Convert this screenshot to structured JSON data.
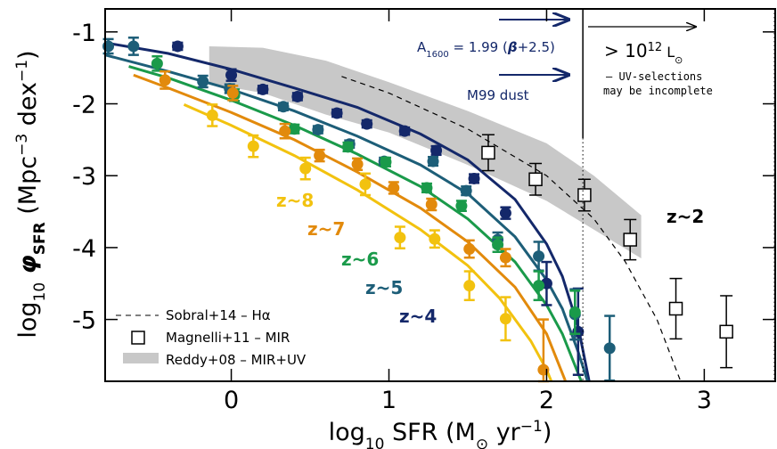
{
  "chart_data": {
    "type": "scatter",
    "xlabel": [
      "log",
      "10",
      " SFR (M",
      "⊙",
      " yr",
      "−1",
      ")"
    ],
    "ylabel": [
      "log",
      "10",
      " φ",
      "SFR",
      " (Mpc",
      "−3",
      " dex",
      "−1",
      ")"
    ],
    "xlim": [
      -0.8,
      3.45
    ],
    "ylim": [
      -5.86,
      -0.68
    ],
    "xticks": [
      0,
      1,
      2,
      3
    ],
    "yticks": [
      -5,
      -4,
      -3,
      -2,
      -1
    ],
    "series": [
      {
        "name": "z~4",
        "color": "#14286a",
        "x": [
          -0.34,
          0.0,
          0.2,
          0.42,
          0.67,
          0.86,
          1.1,
          1.3,
          1.54,
          1.74,
          2.0,
          2.2
        ],
        "values": [
          -1.2,
          -1.6,
          -1.8,
          -1.9,
          -2.13,
          -2.28,
          -2.38,
          -2.65,
          -3.04,
          -3.52,
          -4.5,
          -5.17
        ],
        "errors": [
          0.05,
          0.08,
          0.05,
          0.05,
          0.05,
          0.05,
          0.05,
          0.06,
          0.06,
          0.08,
          0.3,
          0.6
        ],
        "fit_x": [
          -0.8,
          -0.4,
          0,
          0.4,
          0.8,
          1.2,
          1.5,
          1.8,
          2.0,
          2.1,
          2.2,
          2.27
        ],
        "fit_values": [
          -1.15,
          -1.3,
          -1.52,
          -1.78,
          -2.05,
          -2.42,
          -2.78,
          -3.33,
          -3.95,
          -4.4,
          -5.1,
          -5.86
        ]
      },
      {
        "name": "z~5",
        "color": "#1d5e78",
        "x": [
          -0.78,
          -0.62,
          -0.18,
          -0.01,
          0.33,
          0.55,
          0.75,
          0.97,
          1.28,
          1.49,
          1.69,
          1.95,
          2.18,
          2.4
        ],
        "values": [
          -1.2,
          -1.2,
          -1.69,
          -1.79,
          -2.04,
          -2.36,
          -2.56,
          -2.8,
          -2.8,
          -3.21,
          -3.89,
          -4.12,
          -4.93,
          -5.4
        ],
        "errors": [
          0.1,
          0.12,
          0.08,
          0.06,
          0.05,
          0.05,
          0.05,
          0.05,
          0.06,
          0.06,
          0.1,
          0.2,
          0.35,
          0.45
        ],
        "fit_x": [
          -0.8,
          -0.4,
          0,
          0.4,
          0.8,
          1.2,
          1.5,
          1.8,
          2.0,
          2.1,
          2.2,
          2.26
        ],
        "fit_values": [
          -1.32,
          -1.55,
          -1.8,
          -2.1,
          -2.45,
          -2.85,
          -3.25,
          -3.85,
          -4.45,
          -4.85,
          -5.45,
          -5.86
        ]
      },
      {
        "name": "z~6",
        "color": "#1a9a4a",
        "x": [
          -0.47,
          0.02,
          0.4,
          0.74,
          0.98,
          1.24,
          1.46,
          1.69,
          1.95,
          2.18
        ],
        "values": [
          -1.44,
          -1.88,
          -2.35,
          -2.6,
          -2.81,
          -3.17,
          -3.42,
          -3.96,
          -4.53,
          -4.9
        ],
        "errors": [
          0.1,
          0.08,
          0.06,
          0.06,
          0.06,
          0.06,
          0.07,
          0.1,
          0.2,
          0.3
        ],
        "fit_x": [
          -0.65,
          -0.4,
          0,
          0.4,
          0.8,
          1.2,
          1.5,
          1.8,
          2.0,
          2.1,
          2.2,
          2.22
        ],
        "fit_values": [
          -1.48,
          -1.64,
          -1.95,
          -2.3,
          -2.7,
          -3.15,
          -3.6,
          -4.2,
          -4.8,
          -5.2,
          -5.75,
          -5.86
        ]
      },
      {
        "name": "z~7",
        "color": "#e28a0c",
        "x": [
          -0.42,
          0.01,
          0.34,
          0.56,
          0.8,
          1.03,
          1.27,
          1.51,
          1.74,
          1.98
        ],
        "values": [
          -1.67,
          -1.85,
          -2.38,
          -2.72,
          -2.84,
          -3.17,
          -3.4,
          -4.02,
          -4.14,
          -5.7
        ],
        "errors": [
          0.12,
          0.1,
          0.1,
          0.08,
          0.08,
          0.08,
          0.08,
          0.12,
          0.12,
          0.7
        ],
        "fit_x": [
          -0.62,
          -0.4,
          0,
          0.4,
          0.8,
          1.2,
          1.5,
          1.8,
          2.0,
          2.12
        ],
        "fit_values": [
          -1.6,
          -1.78,
          -2.12,
          -2.5,
          -2.95,
          -3.45,
          -3.92,
          -4.55,
          -5.2,
          -5.86
        ]
      },
      {
        "name": "z~8",
        "color": "#f2c20f",
        "x": [
          -0.12,
          0.14,
          0.47,
          0.85,
          1.07,
          1.29,
          1.51,
          1.74
        ],
        "values": [
          -2.16,
          -2.59,
          -2.9,
          -3.12,
          -3.86,
          -3.88,
          -4.53,
          -4.99
        ],
        "errors": [
          0.15,
          0.15,
          0.15,
          0.15,
          0.15,
          0.12,
          0.2,
          0.3
        ],
        "fit_x": [
          -0.3,
          0,
          0.4,
          0.8,
          1.2,
          1.5,
          1.7,
          1.9,
          2.0,
          2.03
        ],
        "fit_values": [
          -2.01,
          -2.3,
          -2.72,
          -3.2,
          -3.75,
          -4.25,
          -4.7,
          -5.3,
          -5.7,
          -5.86
        ]
      }
    ],
    "magnelli": {
      "name": "Magnelli+11 – MIR",
      "color": "#000000",
      "x": [
        1.63,
        1.93,
        2.24,
        2.53,
        2.82,
        3.14
      ],
      "values": [
        -2.68,
        -3.05,
        -3.27,
        -3.89,
        -4.85,
        -5.17
      ],
      "errors": [
        0.25,
        0.22,
        0.22,
        0.28,
        0.42,
        0.5
      ]
    },
    "sobral": {
      "name": "Sobral+14 – Hα",
      "color": "#000000",
      "x": [
        0.7,
        1.0,
        1.5,
        2.0,
        2.3,
        2.5,
        2.7,
        2.85
      ],
      "values": [
        -1.62,
        -1.85,
        -2.35,
        -3.0,
        -3.6,
        -4.2,
        -5.0,
        -5.86
      ]
    },
    "reddy": {
      "name": "Reddy+08 – MIR+UV",
      "color": "#c8c8c8",
      "x": [
        -0.14,
        0.2,
        0.6,
        1.0,
        1.5,
        2.0,
        2.3,
        2.6
      ],
      "upper": [
        -1.2,
        -1.22,
        -1.4,
        -1.7,
        -2.1,
        -2.55,
        -3.0,
        -3.55
      ],
      "lower": [
        -1.72,
        -1.85,
        -2.15,
        -2.4,
        -2.85,
        -3.35,
        -3.75,
        -4.15
      ]
    },
    "cutoff_x": 2.23,
    "annotations": {
      "dust_relation": [
        "A",
        "1600",
        " = 1.99 (",
        "β",
        "+2.5)"
      ],
      "m99": "M99 dust",
      "luminosity": [
        "> 10",
        "12",
        " L",
        "⊙"
      ],
      "note_line1": "– UV-selections",
      "note_line2": "may be incomplete",
      "z2": "z~2"
    }
  }
}
